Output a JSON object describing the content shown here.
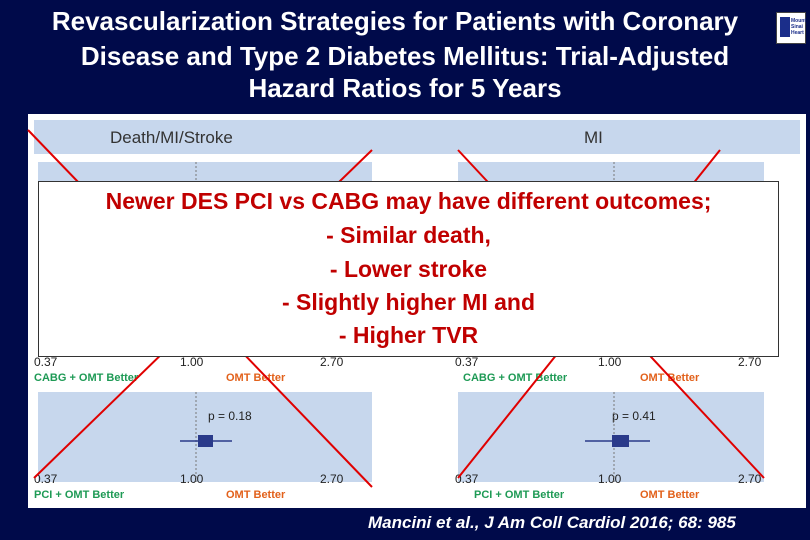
{
  "title": {
    "line1": "Revascularization Strategies for Patients with Coronary",
    "line2": "Disease and Type 2 Diabetes Mellitus: Trial-Adjusted",
    "line3": "Hazard Ratios for 5 Years"
  },
  "logo": {
    "text": "Mount Sinai Heart"
  },
  "panels": {
    "left_header": "Death/MI/Stroke",
    "right_header": "MI",
    "ticks": [
      "0.37",
      "1.00",
      "2.70"
    ],
    "cabg_better": "CABG + OMT Better",
    "pci_better": "PCI + OMT Better",
    "omt_better": "OMT Better",
    "left_p": "p = 0.18",
    "right_p": "p = 0.41"
  },
  "overlay": {
    "line1": "Newer DES PCI vs CABG may have different outcomes;",
    "line2": "- Similar death,",
    "line3": "- Lower stroke",
    "line4": "- Slightly higher MI and",
    "line5": "- Higher TVR"
  },
  "citation": "Mancini et al., J Am Coll Cardiol 2016; 68: 985",
  "colors": {
    "background": "#000a4a",
    "accent_red": "#c00000",
    "green": "#1e9a55",
    "orange": "#e2611b"
  }
}
